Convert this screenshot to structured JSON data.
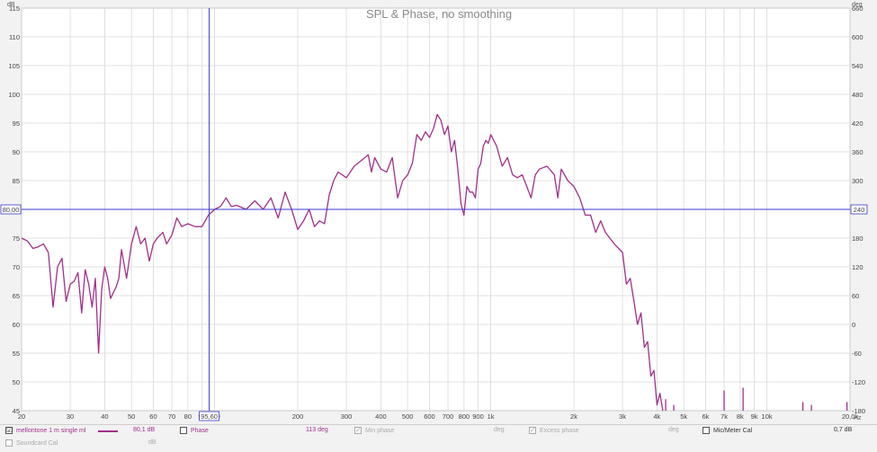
{
  "chart_data": {
    "type": "line",
    "title": "SPL & Phase, no smoothing",
    "x_scale": "log",
    "xlim": [
      20,
      20000
    ],
    "ylim": [
      45,
      115
    ],
    "y2lim": [
      -180,
      660
    ],
    "y_unit": "dB",
    "y2_unit": "deg",
    "x_unit": "Hz",
    "grid": true,
    "x_ticks": [
      {
        "v": 20,
        "label": "20"
      },
      {
        "v": 30,
        "label": "30"
      },
      {
        "v": 40,
        "label": "40"
      },
      {
        "v": 50,
        "label": "50"
      },
      {
        "v": 60,
        "label": "60"
      },
      {
        "v": 70,
        "label": "70"
      },
      {
        "v": 80,
        "label": "80"
      },
      {
        "v": 90,
        "label": "90"
      },
      {
        "v": 100,
        "label": "100"
      },
      {
        "v": 200,
        "label": "200"
      },
      {
        "v": 300,
        "label": "300"
      },
      {
        "v": 400,
        "label": "400"
      },
      {
        "v": 500,
        "label": "500"
      },
      {
        "v": 600,
        "label": "600"
      },
      {
        "v": 700,
        "label": "700"
      },
      {
        "v": 800,
        "label": "800"
      },
      {
        "v": 900,
        "label": "900"
      },
      {
        "v": 1000,
        "label": "1k"
      },
      {
        "v": 2000,
        "label": "2k"
      },
      {
        "v": 3000,
        "label": "3k"
      },
      {
        "v": 4000,
        "label": "4k"
      },
      {
        "v": 5000,
        "label": "5k"
      },
      {
        "v": 6000,
        "label": "6k"
      },
      {
        "v": 7000,
        "label": "7k"
      },
      {
        "v": 8000,
        "label": "8k"
      },
      {
        "v": 9000,
        "label": "9k"
      },
      {
        "v": 10000,
        "label": "10k"
      },
      {
        "v": 20000,
        "label": "20,0k"
      }
    ],
    "y_ticks": [
      115,
      110,
      105,
      100,
      95,
      90,
      85,
      80,
      75,
      70,
      65,
      60,
      55,
      50,
      45
    ],
    "y2_ticks": [
      660,
      600,
      540,
      480,
      420,
      360,
      300,
      240,
      180,
      120,
      60,
      0,
      -60,
      -120,
      -180
    ],
    "cursor": {
      "x": 95.6,
      "x_label": "95,60",
      "y": 80,
      "y_label": "80,00",
      "y2_label": "240"
    },
    "series": [
      {
        "name": "mellontone 1 m single ml",
        "color": "#a0308a",
        "points": [
          [
            20,
            75
          ],
          [
            21,
            74.5
          ],
          [
            22,
            73.2
          ],
          [
            23,
            73.5
          ],
          [
            24,
            74
          ],
          [
            25,
            72.5
          ],
          [
            26,
            63
          ],
          [
            27,
            70
          ],
          [
            28,
            71.5
          ],
          [
            29,
            64
          ],
          [
            30,
            67
          ],
          [
            31,
            67.5
          ],
          [
            32,
            69
          ],
          [
            33,
            62
          ],
          [
            34,
            69.5
          ],
          [
            35,
            67
          ],
          [
            36,
            63
          ],
          [
            37,
            68
          ],
          [
            38,
            55
          ],
          [
            39,
            66
          ],
          [
            40,
            70
          ],
          [
            41,
            68
          ],
          [
            42,
            64.5
          ],
          [
            44,
            66.5
          ],
          [
            45,
            68
          ],
          [
            46,
            73
          ],
          [
            48,
            68
          ],
          [
            50,
            74
          ],
          [
            52,
            77
          ],
          [
            54,
            74
          ],
          [
            56,
            75
          ],
          [
            58,
            71
          ],
          [
            60,
            74
          ],
          [
            62,
            75
          ],
          [
            65,
            76
          ],
          [
            67,
            74
          ],
          [
            70,
            75.5
          ],
          [
            73,
            78.5
          ],
          [
            76,
            77
          ],
          [
            80,
            77.5
          ],
          [
            85,
            77
          ],
          [
            90,
            77
          ],
          [
            95,
            79
          ],
          [
            100,
            80
          ],
          [
            105,
            80.5
          ],
          [
            110,
            82
          ],
          [
            115,
            80.5
          ],
          [
            120,
            80.7
          ],
          [
            130,
            80
          ],
          [
            140,
            81.5
          ],
          [
            150,
            80
          ],
          [
            160,
            82
          ],
          [
            170,
            78.5
          ],
          [
            180,
            83
          ],
          [
            190,
            80
          ],
          [
            200,
            76.5
          ],
          [
            210,
            78
          ],
          [
            220,
            80
          ],
          [
            230,
            77
          ],
          [
            240,
            78
          ],
          [
            250,
            77.5
          ],
          [
            260,
            82.5
          ],
          [
            270,
            85
          ],
          [
            280,
            86.5
          ],
          [
            290,
            86
          ],
          [
            300,
            85.5
          ],
          [
            320,
            87.5
          ],
          [
            340,
            88.5
          ],
          [
            360,
            89.5
          ],
          [
            370,
            86.5
          ],
          [
            380,
            89
          ],
          [
            400,
            87
          ],
          [
            420,
            86.5
          ],
          [
            440,
            89
          ],
          [
            460,
            82
          ],
          [
            480,
            85
          ],
          [
            500,
            86
          ],
          [
            520,
            88
          ],
          [
            540,
            93
          ],
          [
            560,
            92
          ],
          [
            580,
            93.5
          ],
          [
            600,
            92.5
          ],
          [
            620,
            94
          ],
          [
            640,
            96.5
          ],
          [
            660,
            95.5
          ],
          [
            680,
            93
          ],
          [
            700,
            94.5
          ],
          [
            720,
            90
          ],
          [
            740,
            92
          ],
          [
            760,
            87
          ],
          [
            780,
            81
          ],
          [
            800,
            79
          ],
          [
            820,
            84
          ],
          [
            840,
            83
          ],
          [
            860,
            83
          ],
          [
            880,
            82
          ],
          [
            900,
            87
          ],
          [
            920,
            88
          ],
          [
            940,
            91
          ],
          [
            960,
            92
          ],
          [
            980,
            91.5
          ],
          [
            1000,
            93
          ],
          [
            1050,
            91
          ],
          [
            1100,
            87.5
          ],
          [
            1150,
            89
          ],
          [
            1200,
            86
          ],
          [
            1250,
            85.5
          ],
          [
            1300,
            86
          ],
          [
            1350,
            84
          ],
          [
            1400,
            82
          ],
          [
            1450,
            86
          ],
          [
            1500,
            87
          ],
          [
            1600,
            87.5
          ],
          [
            1700,
            86
          ],
          [
            1750,
            82
          ],
          [
            1800,
            87
          ],
          [
            1900,
            85
          ],
          [
            2000,
            84
          ],
          [
            2100,
            82
          ],
          [
            2200,
            79
          ],
          [
            2300,
            79
          ],
          [
            2400,
            76
          ],
          [
            2500,
            78
          ],
          [
            2600,
            76
          ],
          [
            2800,
            74
          ],
          [
            3000,
            72.5
          ],
          [
            3100,
            67
          ],
          [
            3200,
            68
          ],
          [
            3300,
            64
          ],
          [
            3400,
            60
          ],
          [
            3500,
            62
          ],
          [
            3600,
            56
          ],
          [
            3700,
            57
          ],
          [
            3800,
            51
          ],
          [
            3900,
            52
          ],
          [
            4000,
            46
          ],
          [
            4100,
            48
          ],
          [
            4200,
            45
          ]
        ]
      }
    ]
  },
  "legend": {
    "row1": {
      "series_checkbox": "☑",
      "series_name": "mellontone 1 m single ml",
      "series_value": "80,1 dB",
      "phase_label": "Phase",
      "phase_value": "113 deg",
      "min_phase_label": "Min phase",
      "min_phase_unit": "deg",
      "excess_phase_label": "Excess phase",
      "excess_phase_unit": "deg",
      "mic_cal_label": "Mic/Meter Cal",
      "mic_cal_value": "0,7 dB"
    },
    "row2": {
      "soundcard_cal_label": "Soundcard Cal",
      "soundcard_cal_unit": "dB"
    }
  }
}
